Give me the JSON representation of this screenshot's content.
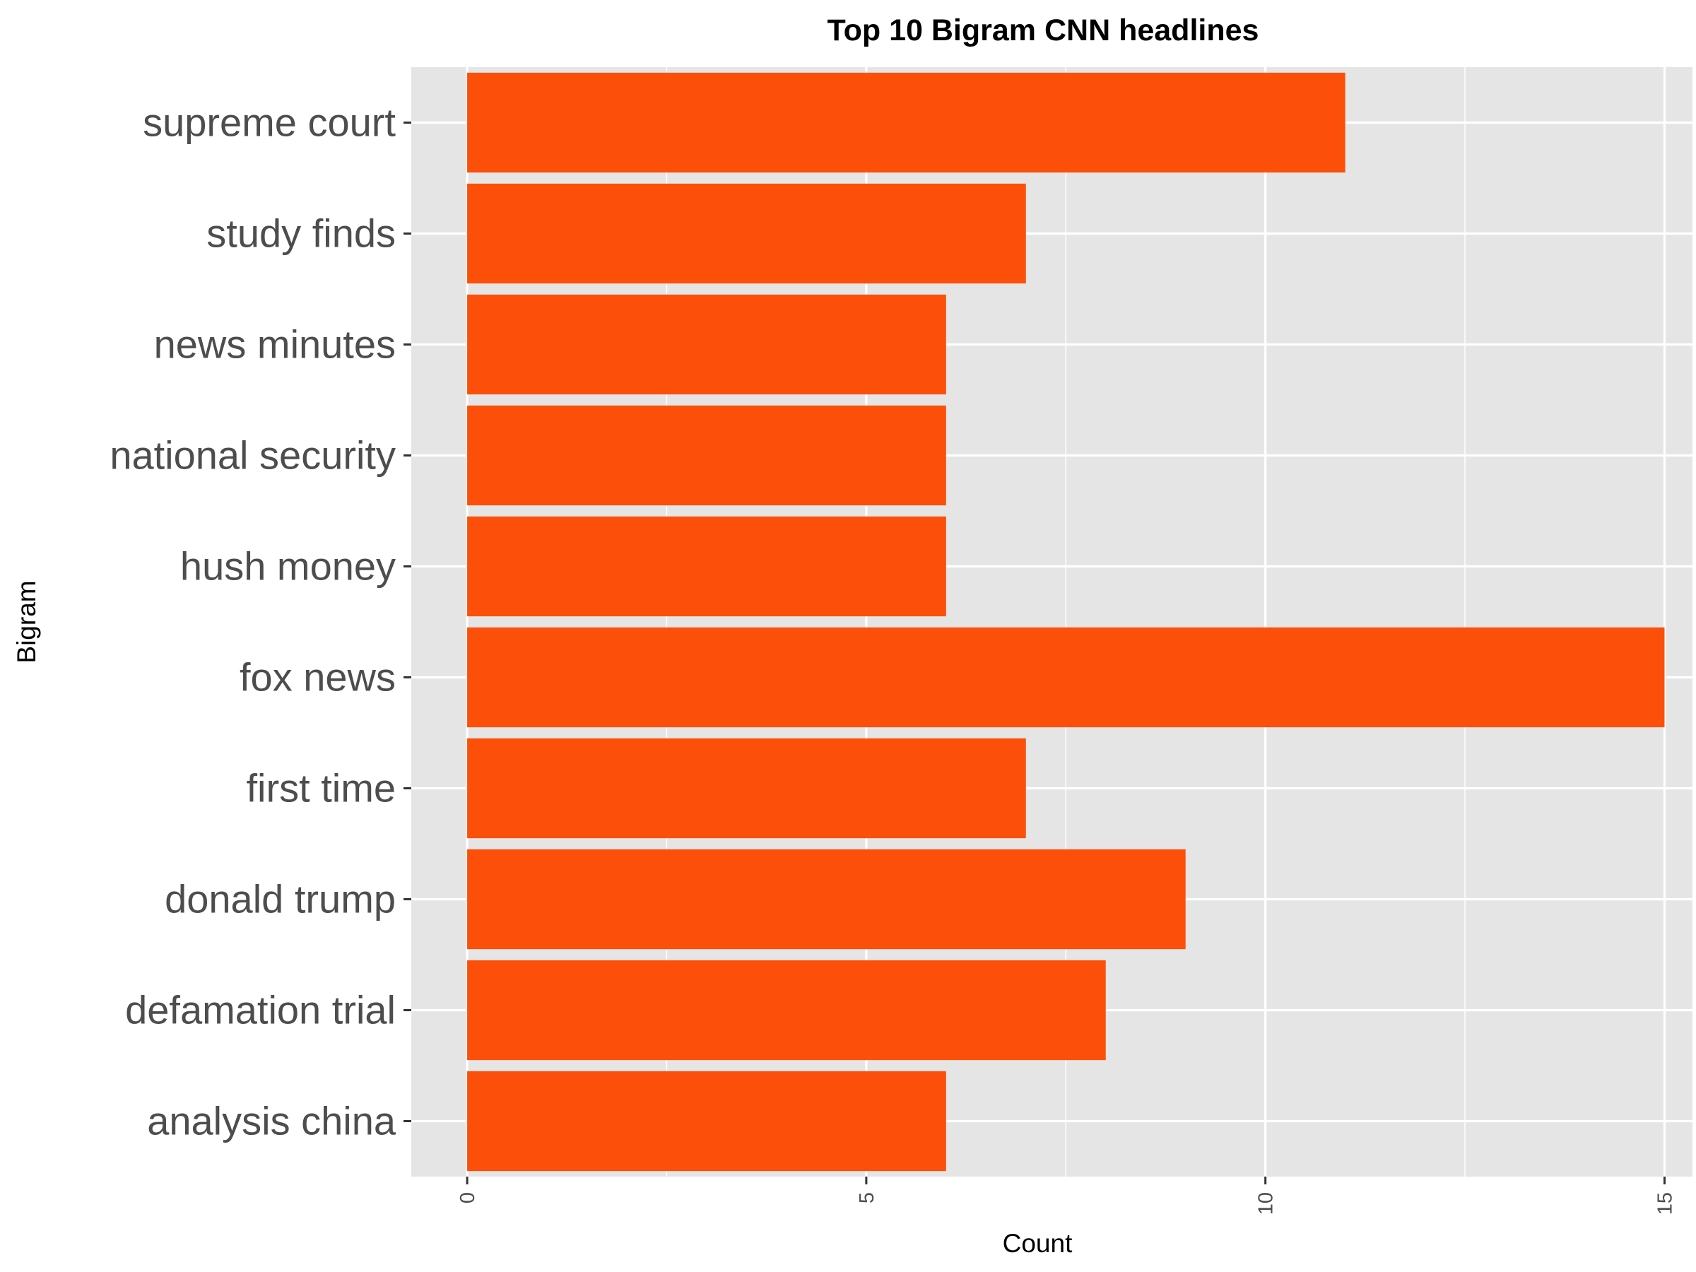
{
  "chart_data": {
    "type": "bar",
    "orientation": "horizontal",
    "title": "Top 10 Bigram CNN headlines",
    "xlabel": "Count",
    "ylabel": "Bigram",
    "categories": [
      "supreme court",
      "study finds",
      "news minutes",
      "national security",
      "hush money",
      "fox news",
      "first time",
      "donald trump",
      "defamation trial",
      "analysis china"
    ],
    "values": [
      11,
      7,
      6,
      6,
      6,
      15,
      7,
      9,
      8,
      6
    ],
    "xlim": [
      -0.7,
      15.35
    ],
    "xticks": [
      0,
      5,
      10,
      15
    ],
    "xtick_labels": [
      "0",
      "5",
      "10",
      "15"
    ],
    "grid": true,
    "legend": "none",
    "colors": {
      "bar": "#fc500a",
      "panel": "#e5e5e5",
      "grid": "#ffffff"
    }
  }
}
